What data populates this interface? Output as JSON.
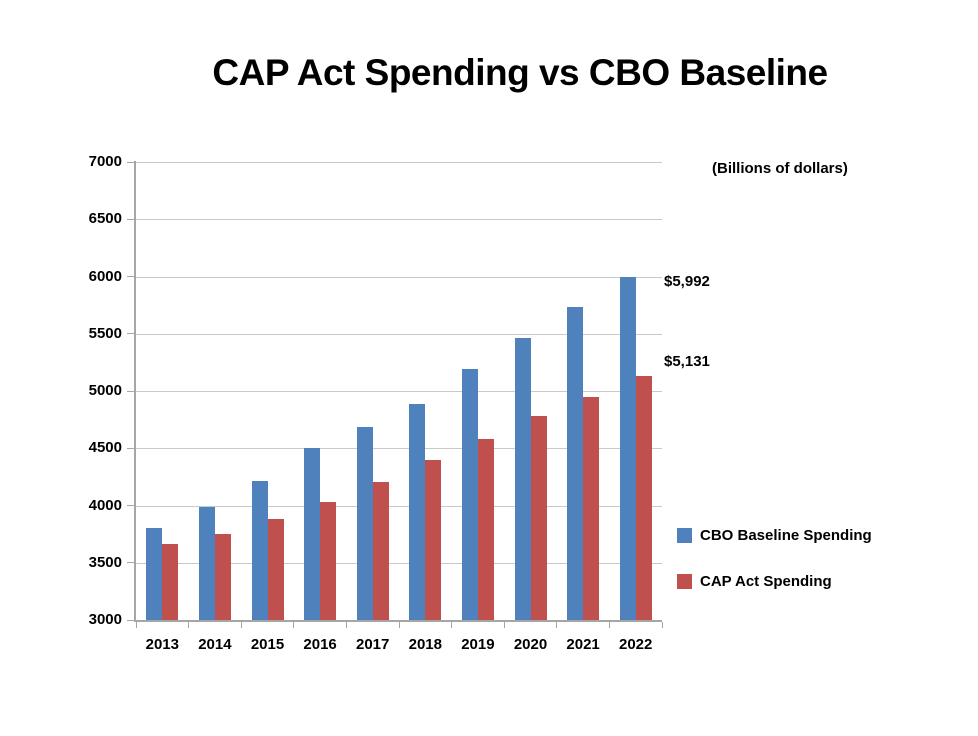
{
  "title": "CAP Act Spending vs CBO Baseline",
  "units_note": "(Billions of dollars)",
  "chart_data": {
    "type": "bar",
    "title": "CAP Act Spending vs CBO Baseline",
    "subtitle": "(Billions of dollars)",
    "categories": [
      "2013",
      "2014",
      "2015",
      "2016",
      "2017",
      "2018",
      "2019",
      "2020",
      "2021",
      "2022"
    ],
    "series": [
      {
        "name": "CBO Baseline Spending",
        "color": "#4F81BD",
        "values": [
          3805,
          3985,
          4215,
          4500,
          4690,
          4885,
          5190,
          5460,
          5730,
          5992
        ]
      },
      {
        "name": "CAP Act Spending",
        "color": "#C0504D",
        "values": [
          3665,
          3750,
          3880,
          4030,
          4205,
          4395,
          4585,
          4785,
          4950,
          5131
        ]
      }
    ],
    "xlabel": "",
    "ylabel": "",
    "ylim": [
      3000,
      7000
    ],
    "ytick_step": 500,
    "grid": true,
    "legend_position": "right",
    "annotations": [
      {
        "text": "$5,992",
        "series": 0,
        "category": "2022"
      },
      {
        "text": "$5,131",
        "series": 1,
        "category": "2022"
      }
    ]
  },
  "colors": {
    "axis": "#A6A6A6",
    "gridline": "#C9C9C9",
    "bar_blue": "#4F81BD",
    "bar_red": "#C0504D",
    "text": "#000000",
    "background": "#FFFFFF"
  }
}
